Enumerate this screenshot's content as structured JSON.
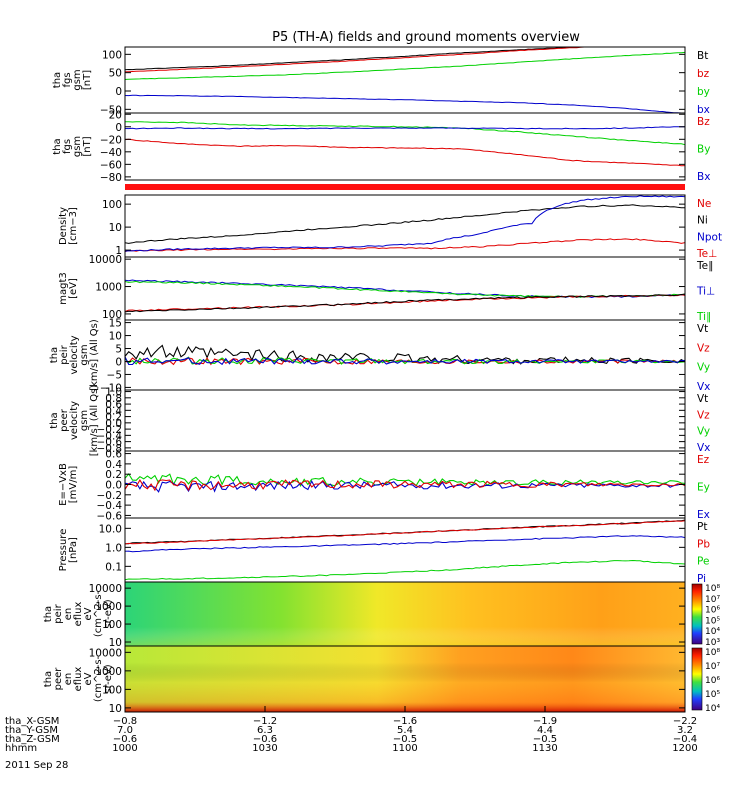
{
  "title": "P5 (TH-A) fields and ground moments overview",
  "colors": {
    "black": "#000000",
    "red": "#e00000",
    "green": "#00d000",
    "blue": "#0000cc"
  },
  "chart_data": [
    {
      "type": "line",
      "ylabel": [
        "tha",
        "fgs",
        "gsm",
        "[nT]"
      ],
      "yticks": [
        "100",
        "50",
        "0",
        "−50"
      ],
      "legend": [
        {
          "label": "Bt",
          "color": "black"
        },
        {
          "label": "bz",
          "color": "red"
        },
        {
          "label": "by",
          "color": "green"
        },
        {
          "label": "bx",
          "color": "blue"
        }
      ],
      "series": [
        {
          "name": "Bt",
          "color": "black",
          "values": [
            58,
            64,
            70,
            78,
            86,
            95,
            104,
            112,
            120,
            130,
            140
          ]
        },
        {
          "name": "bz",
          "color": "red",
          "values": [
            52,
            59,
            66,
            74,
            82,
            91,
            100,
            110,
            118,
            128,
            138
          ]
        },
        {
          "name": "by",
          "color": "green",
          "values": [
            32,
            36,
            40,
            45,
            52,
            60,
            68,
            78,
            88,
            97,
            105
          ]
        },
        {
          "name": "bx",
          "color": "blue",
          "values": [
            -12,
            -13,
            -15,
            -18,
            -21,
            -24,
            -28,
            -32,
            -38,
            -48,
            -62
          ]
        }
      ]
    },
    {
      "type": "line",
      "ylabel": [
        "tha",
        "fgs",
        "gsm",
        "[nT]"
      ],
      "yticks": [
        "20",
        "0",
        "−20",
        "−40",
        "−60",
        "−80"
      ],
      "legend": [
        {
          "label": "Bz",
          "color": "red"
        },
        {
          "label": "By",
          "color": "green"
        },
        {
          "label": "Bx",
          "color": "blue"
        }
      ],
      "series": [
        {
          "name": "Bz",
          "color": "red",
          "values": [
            -20,
            -27,
            -31,
            -30,
            -33,
            -34,
            -35,
            -44,
            -54,
            -58,
            -62
          ]
        },
        {
          "name": "By",
          "color": "green",
          "values": [
            8,
            7,
            3,
            2,
            1,
            0,
            -2,
            -8,
            -15,
            -22,
            -28
          ]
        },
        {
          "name": "Bx",
          "color": "blue",
          "values": [
            -3,
            -2,
            -3,
            -3,
            -2,
            -2,
            -2,
            -3,
            -3,
            -2,
            0
          ]
        }
      ]
    },
    {
      "type": "line",
      "ylabel": [
        "Density",
        "[cm−3]"
      ],
      "yticks": [
        "100",
        "10",
        "1"
      ],
      "legend": [
        {
          "label": "Ne",
          "color": "red"
        },
        {
          "label": "Ni",
          "color": "black"
        },
        {
          "label": "Npot",
          "color": "blue"
        },
        {
          "label": "Te⊥",
          "color": "red"
        }
      ],
      "series": [
        {
          "name": "Ni",
          "color": "black",
          "values": [
            2,
            3,
            4,
            6,
            9,
            13,
            20,
            32,
            55,
            80,
            90,
            70
          ]
        },
        {
          "name": "Ne",
          "color": "red",
          "values": [
            0.9,
            1,
            1.1,
            1.1,
            1.2,
            1.2,
            1.2,
            1.4,
            2,
            2.8,
            3,
            2
          ]
        },
        {
          "name": "Npot",
          "color": "blue",
          "values": [
            0.9,
            1.1,
            1.2,
            1.3,
            1.3,
            1.5,
            2,
            5,
            15,
            150,
            220,
            210
          ]
        }
      ]
    },
    {
      "type": "line",
      "ylabel": [
        "magt3",
        "[eV]"
      ],
      "yticks": [
        "10000",
        "1000",
        "100"
      ],
      "legend": [
        {
          "label": "Te∥",
          "color": "black"
        },
        {
          "label": "Ti⊥",
          "color": "blue"
        },
        {
          "label": "Ti∥",
          "color": "green"
        }
      ],
      "series": [
        {
          "name": "Ti⊥",
          "color": "blue",
          "values": [
            1700,
            1500,
            1300,
            1100,
            900,
            700,
            550,
            450,
            420,
            430,
            500
          ]
        },
        {
          "name": "Ti∥",
          "color": "green",
          "values": [
            1500,
            1400,
            1200,
            1000,
            800,
            650,
            520,
            450,
            430,
            450,
            520
          ]
        },
        {
          "name": "Te⊥",
          "color": "red",
          "values": [
            130,
            150,
            170,
            190,
            220,
            270,
            330,
            380,
            420,
            450,
            480
          ]
        },
        {
          "name": "Te∥",
          "color": "black",
          "values": [
            120,
            140,
            160,
            190,
            230,
            290,
            350,
            400,
            430,
            460,
            500
          ]
        }
      ]
    },
    {
      "type": "line",
      "ylabel": [
        "tha",
        "peir",
        "velocity",
        "gsm",
        "[km/s] (All Qs)"
      ],
      "yticks": [
        "15",
        "10",
        "5",
        "0",
        "−5",
        "−10"
      ],
      "legend": [
        {
          "label": "Vt",
          "color": "black"
        },
        {
          "label": "Vz",
          "color": "red"
        },
        {
          "label": "Vy",
          "color": "green"
        },
        {
          "label": "Vx",
          "color": "blue"
        }
      ],
      "series": [
        {
          "name": "Vt",
          "color": "black",
          "values": [
            4,
            3.2,
            2.6,
            2,
            1.5,
            1,
            0.7,
            0.5,
            0.4,
            0.3,
            0.3
          ]
        },
        {
          "name": "Vz",
          "color": "red",
          "values": [
            0.2,
            0.2,
            0.1,
            0.1,
            0,
            0,
            0,
            0,
            0,
            0,
            0
          ]
        },
        {
          "name": "Vy",
          "color": "green",
          "values": [
            0.5,
            0.4,
            0.3,
            0.2,
            0.1,
            0.1,
            0,
            0,
            0,
            0,
            0
          ]
        },
        {
          "name": "Vx",
          "color": "blue",
          "values": [
            0.3,
            0.2,
            0.2,
            0.1,
            0.1,
            0,
            0,
            0,
            0,
            0,
            0
          ]
        }
      ]
    },
    {
      "type": "line",
      "ylabel": [
        "tha",
        "peer",
        "velocity",
        "gsm",
        "[km/s] (All Qs)"
      ],
      "yticks": [
        "1.0",
        "0.8",
        "0.6",
        "0.4",
        "0.2",
        "0.0",
        "−0.2",
        "−0.4",
        "−0.6",
        "−0.8"
      ],
      "legend": [
        {
          "label": "Vt",
          "color": "black"
        },
        {
          "label": "Vz",
          "color": "red"
        },
        {
          "label": "Vy",
          "color": "green"
        },
        {
          "label": "Vx",
          "color": "blue"
        }
      ],
      "series": []
    },
    {
      "type": "line",
      "ylabel": [
        "E=−VxB",
        "[mV/m]"
      ],
      "yticks": [
        "0.6",
        "0.4",
        "0.2",
        "0.0",
        "−0.2",
        "−0.4",
        "−0.6"
      ],
      "legend": [
        {
          "label": "Ez",
          "color": "red"
        },
        {
          "label": "Ey",
          "color": "green"
        },
        {
          "label": "Ex",
          "color": "blue"
        }
      ],
      "series": [
        {
          "name": "Ey",
          "color": "green",
          "values": [
            0.12,
            0.1,
            0.08,
            0.06,
            0.05,
            0.04,
            0.04,
            0.04,
            0.04,
            0.05,
            0.05
          ]
        },
        {
          "name": "Ex",
          "color": "blue",
          "values": [
            -0.04,
            -0.04,
            -0.03,
            -0.02,
            -0.02,
            -0.02,
            -0.02,
            -0.02,
            -0.02,
            -0.02,
            -0.02
          ]
        },
        {
          "name": "Ez",
          "color": "red",
          "values": [
            0,
            -0.02,
            -0.01,
            0,
            0,
            0,
            0,
            0,
            0,
            0,
            0
          ]
        }
      ]
    },
    {
      "type": "line",
      "ylabel": [
        "Pressure",
        "[nPa]"
      ],
      "yticks": [
        "10.0",
        "1.0",
        "0.1"
      ],
      "legend": [
        {
          "label": "Pt",
          "color": "black"
        },
        {
          "label": "Pb",
          "color": "red"
        },
        {
          "label": "Pe",
          "color": "green"
        },
        {
          "label": "Pi",
          "color": "blue"
        }
      ],
      "series": [
        {
          "name": "Pt",
          "color": "black",
          "values": [
            1.6,
            2,
            2.6,
            3.4,
            4.5,
            6,
            8,
            11,
            14,
            19,
            26
          ]
        },
        {
          "name": "Pb",
          "color": "red",
          "values": [
            1.5,
            1.9,
            2.5,
            3.2,
            4.3,
            5.8,
            7.8,
            10.5,
            14,
            18,
            25
          ]
        },
        {
          "name": "Pi",
          "color": "blue",
          "values": [
            0.6,
            0.8,
            0.95,
            1.1,
            1.3,
            1.6,
            2,
            2.6,
            3.2,
            4,
            3.4
          ]
        },
        {
          "name": "Pe",
          "color": "green",
          "values": [
            0.021,
            0.022,
            0.025,
            0.03,
            0.037,
            0.05,
            0.07,
            0.11,
            0.16,
            0.2,
            0.13
          ]
        }
      ]
    },
    {
      "type": "heatmap",
      "ylabel": [
        "tha",
        "peir",
        "en",
        "eflux",
        "eV",
        "(cm^2-s-",
        "sr-eV)"
      ],
      "yticks": [
        "10000",
        "1000",
        "100",
        "10"
      ],
      "colorbar_ticks": [
        "10⁸",
        "10⁷",
        "10⁶",
        "10⁵",
        "10⁴",
        "10³"
      ]
    },
    {
      "type": "heatmap",
      "ylabel": [
        "tha",
        "peer",
        "en",
        "eflux",
        "eV",
        "(cm^2-s-",
        "sr-eV)"
      ],
      "yticks": [
        "10000",
        "1000",
        "100",
        "10"
      ],
      "colorbar_ticks": [
        "10⁸",
        "10⁷",
        "10⁶",
        "10⁵",
        "10⁴"
      ]
    }
  ],
  "xaxis": {
    "rows": [
      {
        "label": "tha_X-GSM",
        "values": [
          "−0.8",
          "−1.2",
          "−1.6",
          "−1.9",
          "−2.2"
        ]
      },
      {
        "label": "tha_Y-GSM",
        "values": [
          "7.0",
          "6.3",
          "5.4",
          "4.4",
          "3.2"
        ]
      },
      {
        "label": "tha_Z-GSM",
        "values": [
          "−0.6",
          "−0.6",
          "−0.5",
          "−0.5",
          "−0.4"
        ]
      },
      {
        "label": "hhmm",
        "values": [
          "1000",
          "1030",
          "1100",
          "1130",
          "1200"
        ]
      }
    ],
    "date": "2011 Sep 28"
  }
}
